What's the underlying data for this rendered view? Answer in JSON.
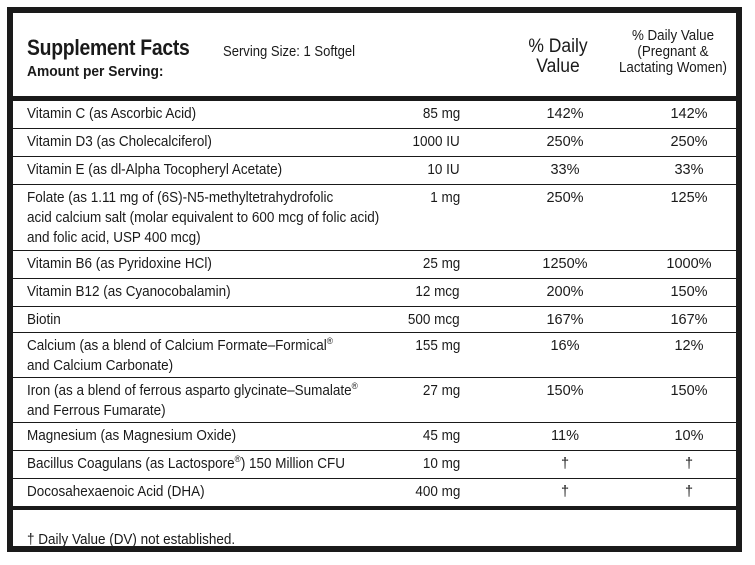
{
  "header": {
    "title": "Supplement Facts",
    "serving": "Serving Size: 1 Softgel",
    "amount_label": "Amount per Serving:",
    "col_dv": "% Daily Value",
    "col_pregnant": "% Daily Value (Pregnant & Lactating Women)"
  },
  "rows": [
    {
      "name": "Vitamin C (as Ascorbic Acid)",
      "amount": "85 mg",
      "dv": "142%",
      "preg": "142%"
    },
    {
      "name": "Vitamin D3 (as Cholecalciferol)",
      "amount": "1000 IU",
      "dv": "250%",
      "preg": "250%"
    },
    {
      "name": "Vitamin E (as dl-Alpha Tocopheryl Acetate)",
      "amount": "10 IU",
      "dv": "33%",
      "preg": "33%"
    },
    {
      "name": "Folate (as 1.11 mg of (6S)-N5-methyltetrahydrofolic\nacid calcium salt (molar equivalent to 600 mcg of folic acid)\nand folic acid, USP 400 mcg)",
      "amount": "1 mg",
      "dv": "250%",
      "preg": "125%"
    },
    {
      "name": "Vitamin B6 (as Pyridoxine HCl)",
      "amount": "25 mg",
      "dv": "1250%",
      "preg": "1000%"
    },
    {
      "name": "Vitamin B12 (as Cyanocobalamin)",
      "amount": "12 mcg",
      "dv": "200%",
      "preg": "150%"
    },
    {
      "name": "Biotin",
      "amount": "500 mcg",
      "dv": "167%",
      "preg": "167%"
    },
    {
      "name": "Calcium (as a blend of Calcium Formate–Formical®\nand Calcium Carbonate)",
      "amount": "155 mg",
      "dv": "16%",
      "preg": "12%"
    },
    {
      "name": "Iron (as a blend of ferrous asparto glycinate–Sumalate®\nand Ferrous Fumarate)",
      "amount": "27 mg",
      "dv": "150%",
      "preg": "150%"
    },
    {
      "name": "Magnesium (as Magnesium Oxide)",
      "amount": "45 mg",
      "dv": "11%",
      "preg": "10%"
    },
    {
      "name": "Bacillus Coagulans (as Lactospore®) 150 Million CFU",
      "amount": "10 mg",
      "dv": "†",
      "preg": "†"
    },
    {
      "name": "Docosahexaenoic Acid (DHA)",
      "amount": "400 mg",
      "dv": "†",
      "preg": "†"
    }
  ],
  "footnote": "† Daily Value (DV) not established."
}
